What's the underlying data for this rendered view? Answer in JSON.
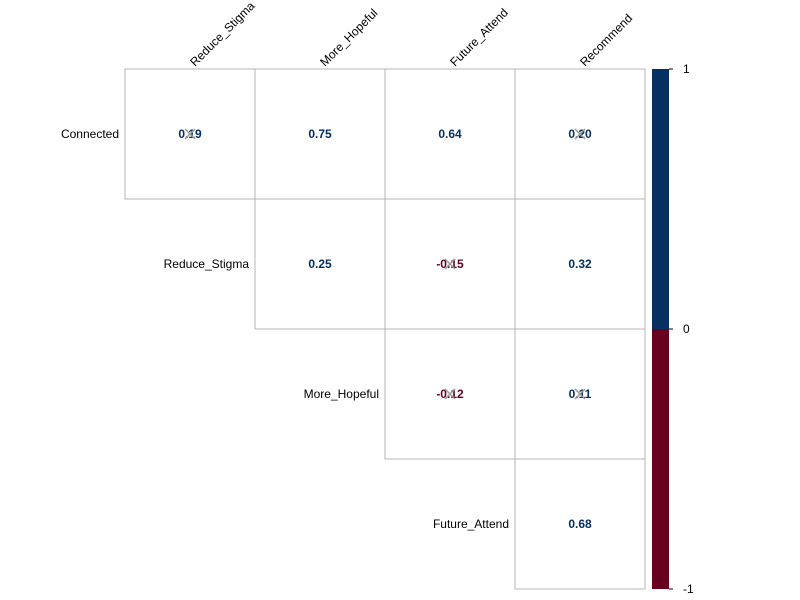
{
  "chart_data": {
    "type": "heatmap",
    "title": "",
    "row_labels": [
      "Connected",
      "Reduce_Stigma",
      "More_Hopeful",
      "Future_Attend"
    ],
    "col_labels": [
      "Reduce_Stigma",
      "More_Hopeful",
      "Future_Attend",
      "Recommend"
    ],
    "cells": [
      {
        "row": 0,
        "col": 0,
        "value": 0.19,
        "label": "0.19",
        "insignificant": true
      },
      {
        "row": 0,
        "col": 1,
        "value": 0.75,
        "label": "0.75",
        "insignificant": false
      },
      {
        "row": 0,
        "col": 2,
        "value": 0.64,
        "label": "0.64",
        "insignificant": false
      },
      {
        "row": 0,
        "col": 3,
        "value": 0.2,
        "label": "0.20",
        "insignificant": true
      },
      {
        "row": 1,
        "col": 1,
        "value": 0.25,
        "label": "0.25",
        "insignificant": false
      },
      {
        "row": 1,
        "col": 2,
        "value": -0.15,
        "label": "-0.15",
        "insignificant": true
      },
      {
        "row": 1,
        "col": 3,
        "value": 0.32,
        "label": "0.32",
        "insignificant": false
      },
      {
        "row": 2,
        "col": 2,
        "value": -0.12,
        "label": "-0.12",
        "insignificant": true
      },
      {
        "row": 2,
        "col": 3,
        "value": 0.11,
        "label": "0.11",
        "insignificant": true
      },
      {
        "row": 3,
        "col": 3,
        "value": 0.68,
        "label": "0.68",
        "insignificant": false
      }
    ],
    "colorbar": {
      "ticks": [
        {
          "value": 1,
          "label": "1"
        },
        {
          "value": 0,
          "label": "0"
        },
        {
          "value": -1,
          "label": "-1"
        }
      ],
      "positive_color": "#053061",
      "negative_color": "#67001F"
    },
    "grid": true
  }
}
